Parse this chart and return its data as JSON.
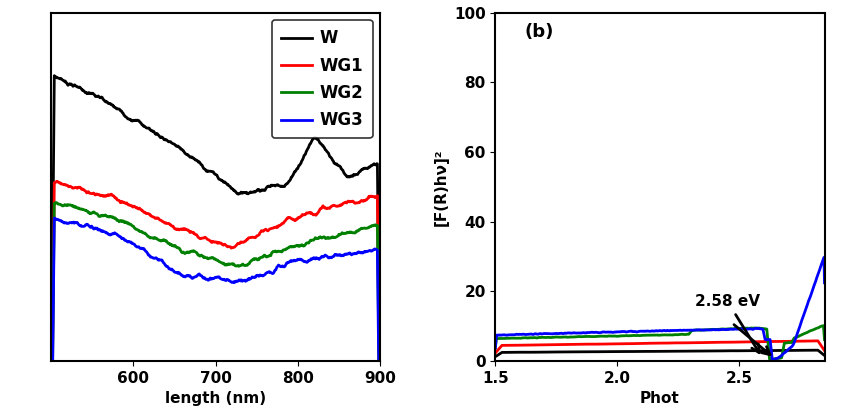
{
  "panel_a": {
    "legend_labels": [
      "W",
      "WG1",
      "WG2",
      "WG3"
    ],
    "legend_colors": [
      "black",
      "red",
      "green",
      "blue"
    ],
    "xlim": [
      500,
      900
    ],
    "xticks": [
      600,
      700,
      800,
      900
    ],
    "xlabel": "length (nm)"
  },
  "panel_b": {
    "xlim": [
      1.5,
      2.85
    ],
    "ylim": [
      0,
      100
    ],
    "xticks": [
      1.5,
      2.0,
      2.5
    ],
    "yticks": [
      0,
      20,
      40,
      60,
      80,
      100
    ],
    "ylabel": "[F(R)hν]²",
    "xlabel": "Phot",
    "title": "(b)",
    "annotation": "2.58 eV"
  },
  "colors": {
    "W": "black",
    "WG1": "red",
    "WG2": "green",
    "WG3": "blue"
  },
  "linewidth": 2.0
}
